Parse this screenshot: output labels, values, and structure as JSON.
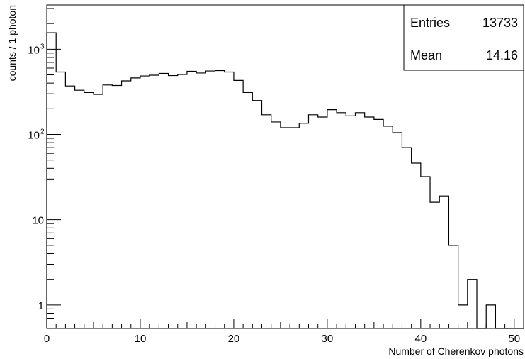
{
  "chart_data": {
    "type": "bar",
    "style": "histogram-step",
    "xlabel": "Number of Cherenkov photons",
    "ylabel": "counts / 1 photon",
    "xlim": [
      0,
      51
    ],
    "ylim": [
      0.53,
      3300
    ],
    "yscale": "log",
    "grid": false,
    "legend": "none",
    "x_ticks": [
      {
        "value": 0,
        "label": "0"
      },
      {
        "value": 10,
        "label": "10"
      },
      {
        "value": 20,
        "label": "20"
      },
      {
        "value": 30,
        "label": "30"
      },
      {
        "value": 40,
        "label": "40"
      },
      {
        "value": 50,
        "label": "50"
      }
    ],
    "y_ticks": [
      {
        "value": 1,
        "label": "1"
      },
      {
        "value": 10,
        "label": "10"
      },
      {
        "value": 100,
        "label": "10",
        "sup": "2"
      },
      {
        "value": 1000,
        "label": "10",
        "sup": "3"
      }
    ],
    "bin_width": 1,
    "bin_start": 0,
    "values": [
      1560,
      540,
      370,
      330,
      310,
      295,
      380,
      375,
      425,
      460,
      485,
      495,
      520,
      490,
      505,
      550,
      525,
      555,
      560,
      540,
      430,
      310,
      250,
      170,
      140,
      120,
      120,
      135,
      170,
      160,
      195,
      180,
      165,
      180,
      160,
      150,
      125,
      105,
      70,
      46,
      32,
      16,
      19,
      5,
      1,
      2,
      0,
      1,
      0,
      0,
      0
    ],
    "stats": {
      "entries_label": "Entries",
      "entries_value": "13733",
      "mean_label": "Mean",
      "mean_value": "14.16"
    },
    "colors": {
      "line": "#000000",
      "background": "#ffffff"
    }
  }
}
